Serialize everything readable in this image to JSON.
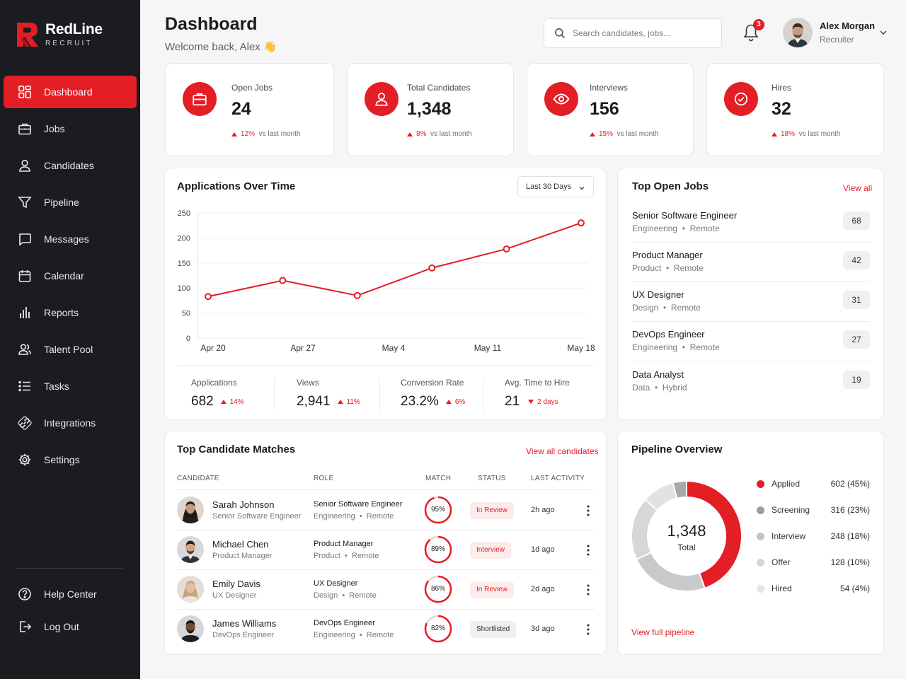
{
  "brand": {
    "name": "RedLine",
    "tagline": "RECRUIT",
    "accent": "#e41e25",
    "sidebar_bg": "#1b1c1f"
  },
  "nav": {
    "items": [
      {
        "label": "Dashboard",
        "icon": "dashboard-icon",
        "active": true
      },
      {
        "label": "Jobs",
        "icon": "briefcase-icon"
      },
      {
        "label": "Candidates",
        "icon": "user-icon"
      },
      {
        "label": "Pipeline",
        "icon": "filter-icon"
      },
      {
        "label": "Messages",
        "icon": "message-icon"
      },
      {
        "label": "Calendar",
        "icon": "calendar-icon"
      },
      {
        "label": "Reports",
        "icon": "bar-chart-icon"
      },
      {
        "label": "Talent Pool",
        "icon": "users-icon"
      },
      {
        "label": "Tasks",
        "icon": "list-icon"
      },
      {
        "label": "Integrations",
        "icon": "link-icon"
      },
      {
        "label": "Settings",
        "icon": "gear-icon"
      }
    ],
    "bottom": [
      {
        "label": "Help Center",
        "icon": "help-icon"
      },
      {
        "label": "Log Out",
        "icon": "logout-icon"
      }
    ]
  },
  "header": {
    "title": "Dashboard",
    "welcome": "Welcome back, Alex 👋",
    "search_placeholder": "Search candidates, jobs...",
    "notifications": "3",
    "user_name": "Alex Morgan",
    "user_role": "Recruiter"
  },
  "stats": [
    {
      "label": "Open Jobs",
      "value": "24",
      "change": "12%",
      "note": "vs last month",
      "icon": "briefcase-icon"
    },
    {
      "label": "Total Candidates",
      "value": "1,348",
      "change": "8%",
      "note": "vs last month",
      "icon": "user-icon"
    },
    {
      "label": "Interviews",
      "value": "156",
      "change": "15%",
      "note": "vs last month",
      "icon": "eye-icon"
    },
    {
      "label": "Hires",
      "value": "32",
      "change": "18%",
      "note": "vs last month",
      "icon": "check-circle-icon"
    }
  ],
  "applications": {
    "title": "Applications Over Time",
    "range": "Last 30 Days",
    "metrics": [
      {
        "label": "Applications",
        "value": "682",
        "change": "14%",
        "dir": "up"
      },
      {
        "label": "Views",
        "value": "2,941",
        "change": "11%",
        "dir": "up"
      },
      {
        "label": "Conversion Rate",
        "value": "23.2%",
        "change": "6%",
        "dir": "up"
      },
      {
        "label": "Avg. Time to Hire",
        "value": "21",
        "change": "2 days",
        "dir": "down"
      }
    ]
  },
  "chart_data": {
    "type": "line",
    "x": [
      0,
      1,
      2,
      3,
      4,
      5
    ],
    "y": [
      83,
      115,
      85,
      140,
      178,
      230
    ],
    "x_ticks": [
      "Apr 20",
      "Apr 27",
      "May 4",
      "May 11",
      "May 18"
    ],
    "y_ticks": [
      "0",
      "50",
      "100",
      "150",
      "200",
      "250"
    ],
    "ylim": [
      0,
      250
    ],
    "grid": true
  },
  "top_jobs": {
    "title": "Top Open Jobs",
    "view_all": "View all",
    "items": [
      {
        "title": "Senior Software Engineer",
        "dept": "Engineering",
        "loc": "Remote",
        "count": "68"
      },
      {
        "title": "Product Manager",
        "dept": "Product",
        "loc": "Remote",
        "count": "42"
      },
      {
        "title": "UX Designer",
        "dept": "Design",
        "loc": "Remote",
        "count": "31"
      },
      {
        "title": "DevOps Engineer",
        "dept": "Engineering",
        "loc": "Remote",
        "count": "27"
      },
      {
        "title": "Data Analyst",
        "dept": "Data",
        "loc": "Hybrid",
        "count": "19"
      }
    ]
  },
  "matches": {
    "title": "Top Candidate Matches",
    "view_all": "View all candidates",
    "columns": [
      "CANDIDATE",
      "ROLE",
      "MATCH",
      "STATUS",
      "LAST ACTIVITY"
    ],
    "rows": [
      {
        "name": "Sarah Johnson",
        "title": "Senior Software Engineer",
        "role": "Senior Software Engineer",
        "dept": "Engineering",
        "loc": "Remote",
        "match": "95%",
        "match_pct": 95,
        "status": "In Review",
        "status_style": "red",
        "activity": "2h ago"
      },
      {
        "name": "Michael Chen",
        "title": "Product Manager",
        "role": "Product Manager",
        "dept": "Product",
        "loc": "Remote",
        "match": "89%",
        "match_pct": 89,
        "status": "Interview",
        "status_style": "red",
        "activity": "1d ago"
      },
      {
        "name": "Emily Davis",
        "title": "UX Designer",
        "role": "UX Designer",
        "dept": "Design",
        "loc": "Remote",
        "match": "86%",
        "match_pct": 86,
        "status": "In Review",
        "status_style": "red",
        "activity": "2d ago"
      },
      {
        "name": "James Williams",
        "title": "DevOps Engineer",
        "role": "DevOps Engineer",
        "dept": "Engineering",
        "loc": "Remote",
        "match": "82%",
        "match_pct": 82,
        "status": "Shortlisted",
        "status_style": "gray",
        "activity": "3d ago"
      }
    ]
  },
  "pipeline": {
    "title": "Pipeline Overview",
    "total": "1,348",
    "total_label": "Total",
    "view_full": "View full pipeline",
    "stages": [
      {
        "name": "Applied",
        "value": "602 (45%)",
        "count": 602,
        "color": "#e41e25"
      },
      {
        "name": "Screening",
        "value": "316 (23%)",
        "count": 316,
        "color": "#c9c9cc"
      },
      {
        "name": "Interview",
        "value": "248 (18%)",
        "count": 248,
        "color": "#d7d7da"
      },
      {
        "name": "Offer",
        "value": "128 (10%)",
        "count": 128,
        "color": "#e2e2e4"
      },
      {
        "name": "Hired",
        "value": "54 (4%)",
        "count": 54,
        "color": "#a9a9ad"
      }
    ]
  }
}
